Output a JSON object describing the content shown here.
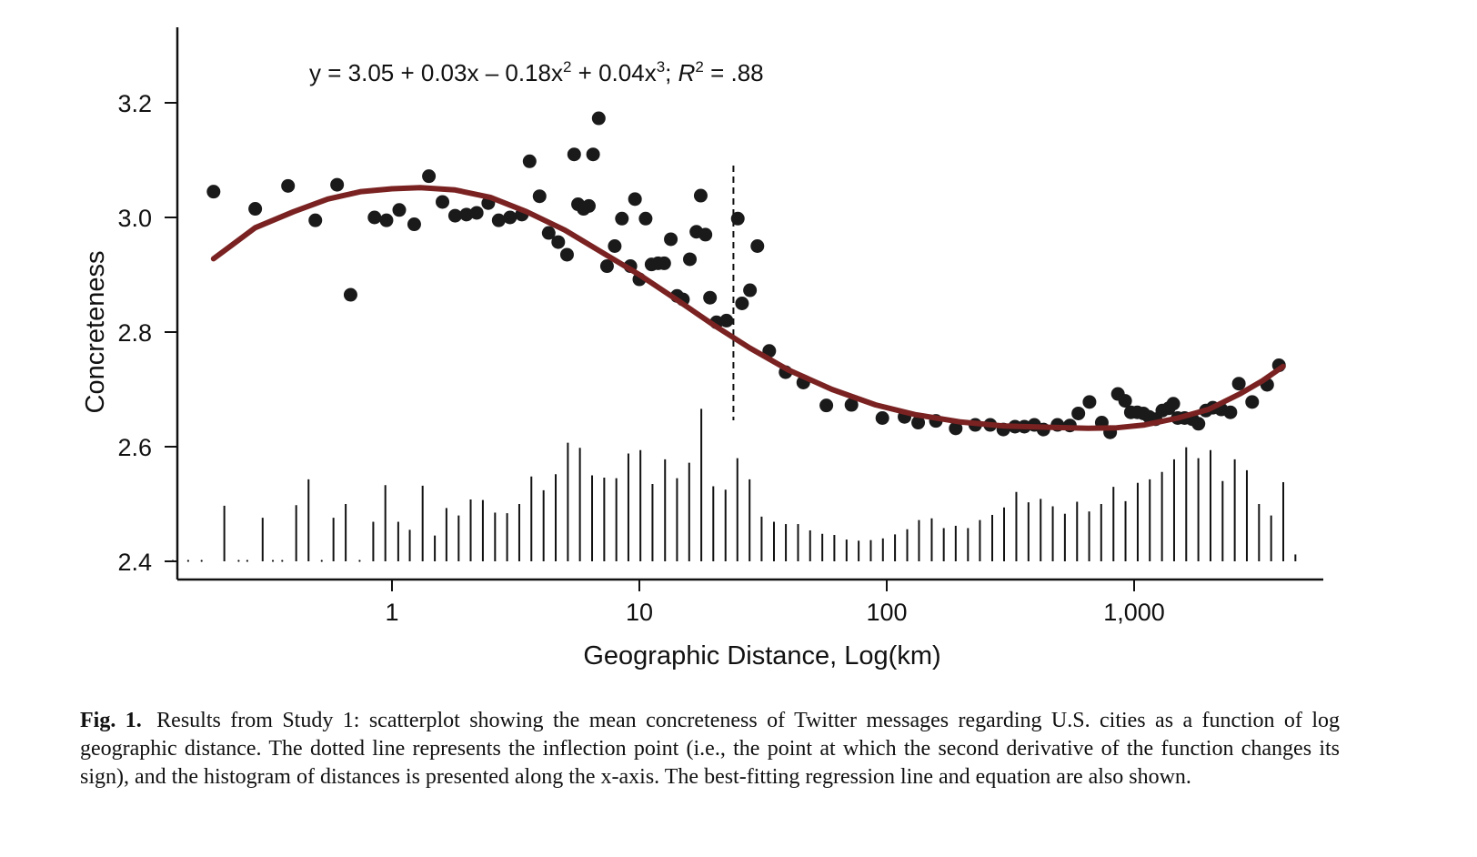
{
  "chart_data": {
    "type": "scatter",
    "equation": {
      "prefix": "y = 3.05 + 0.03x – 0.18x",
      "exp1": "2",
      "mid": " + 0.04x",
      "exp2": "3",
      "sep": "; ",
      "r": "R",
      "exp3": "2",
      "suffix": " = .88"
    },
    "xlabel": "Geographic Distance, Log(km)",
    "ylabel": "Concreteness",
    "x_scale": "log",
    "xlim": [
      0.12,
      6000
    ],
    "ylim": [
      2.4,
      3.33
    ],
    "x_ticks": [
      {
        "value": 1,
        "label": "1"
      },
      {
        "value": 10,
        "label": "10"
      },
      {
        "value": 100,
        "label": "100"
      },
      {
        "value": 1000,
        "label": "1,000"
      }
    ],
    "y_ticks": [
      {
        "value": 2.4,
        "label": "2.4"
      },
      {
        "value": 2.6,
        "label": "2.6"
      },
      {
        "value": 2.8,
        "label": "2.8"
      },
      {
        "value": 3.0,
        "label": "3.0"
      },
      {
        "value": 3.2,
        "label": "3.2"
      }
    ],
    "inflection_x": 24,
    "colors": {
      "points": "#1a1a1a",
      "fit": "#7a2222",
      "axis": "#111111"
    },
    "points": [
      {
        "x": 0.19,
        "y": 3.045
      },
      {
        "x": 0.28,
        "y": 3.015
      },
      {
        "x": 0.38,
        "y": 3.055
      },
      {
        "x": 0.49,
        "y": 2.995
      },
      {
        "x": 0.6,
        "y": 3.057
      },
      {
        "x": 0.68,
        "y": 2.865
      },
      {
        "x": 0.85,
        "y": 3.0
      },
      {
        "x": 0.95,
        "y": 2.995
      },
      {
        "x": 1.07,
        "y": 3.013
      },
      {
        "x": 1.23,
        "y": 2.988
      },
      {
        "x": 1.41,
        "y": 3.072
      },
      {
        "x": 1.6,
        "y": 3.027
      },
      {
        "x": 1.8,
        "y": 3.003
      },
      {
        "x": 2.0,
        "y": 3.005
      },
      {
        "x": 2.2,
        "y": 3.008
      },
      {
        "x": 2.45,
        "y": 3.025
      },
      {
        "x": 2.7,
        "y": 2.995
      },
      {
        "x": 3.0,
        "y": 3.0
      },
      {
        "x": 3.35,
        "y": 3.005
      },
      {
        "x": 3.6,
        "y": 3.098
      },
      {
        "x": 3.95,
        "y": 3.037
      },
      {
        "x": 4.3,
        "y": 2.973
      },
      {
        "x": 4.7,
        "y": 2.957
      },
      {
        "x": 5.1,
        "y": 2.935
      },
      {
        "x": 5.45,
        "y": 3.11
      },
      {
        "x": 5.65,
        "y": 3.023
      },
      {
        "x": 5.95,
        "y": 3.015
      },
      {
        "x": 6.25,
        "y": 3.02
      },
      {
        "x": 6.5,
        "y": 3.11
      },
      {
        "x": 6.85,
        "y": 3.173
      },
      {
        "x": 7.4,
        "y": 2.915
      },
      {
        "x": 7.95,
        "y": 2.95
      },
      {
        "x": 8.5,
        "y": 2.998
      },
      {
        "x": 9.2,
        "y": 2.915
      },
      {
        "x": 9.6,
        "y": 3.032
      },
      {
        "x": 10.0,
        "y": 2.892
      },
      {
        "x": 10.6,
        "y": 2.998
      },
      {
        "x": 11.2,
        "y": 2.918
      },
      {
        "x": 11.9,
        "y": 2.92
      },
      {
        "x": 12.6,
        "y": 2.92
      },
      {
        "x": 13.4,
        "y": 2.962
      },
      {
        "x": 14.2,
        "y": 2.863
      },
      {
        "x": 15.0,
        "y": 2.857
      },
      {
        "x": 16.0,
        "y": 2.927
      },
      {
        "x": 17.0,
        "y": 2.975
      },
      {
        "x": 17.7,
        "y": 3.038
      },
      {
        "x": 18.5,
        "y": 2.97
      },
      {
        "x": 19.3,
        "y": 2.86
      },
      {
        "x": 20.5,
        "y": 2.817
      },
      {
        "x": 22.5,
        "y": 2.82
      },
      {
        "x": 25.0,
        "y": 2.998
      },
      {
        "x": 26.0,
        "y": 2.85
      },
      {
        "x": 28.0,
        "y": 2.873
      },
      {
        "x": 30.0,
        "y": 2.95
      },
      {
        "x": 33.5,
        "y": 2.767
      },
      {
        "x": 39.0,
        "y": 2.73
      },
      {
        "x": 46.0,
        "y": 2.712
      },
      {
        "x": 57.0,
        "y": 2.672
      },
      {
        "x": 72.0,
        "y": 2.673
      },
      {
        "x": 96.0,
        "y": 2.65
      },
      {
        "x": 118.0,
        "y": 2.652
      },
      {
        "x": 134.0,
        "y": 2.642
      },
      {
        "x": 158.0,
        "y": 2.645
      },
      {
        "x": 190.0,
        "y": 2.632
      },
      {
        "x": 228.0,
        "y": 2.638
      },
      {
        "x": 262.0,
        "y": 2.638
      },
      {
        "x": 296.0,
        "y": 2.63
      },
      {
        "x": 330.0,
        "y": 2.635
      },
      {
        "x": 360.0,
        "y": 2.635
      },
      {
        "x": 395.0,
        "y": 2.638
      },
      {
        "x": 430.0,
        "y": 2.63
      },
      {
        "x": 490.0,
        "y": 2.638
      },
      {
        "x": 550.0,
        "y": 2.637
      },
      {
        "x": 595.0,
        "y": 2.658
      },
      {
        "x": 660.0,
        "y": 2.678
      },
      {
        "x": 740.0,
        "y": 2.642
      },
      {
        "x": 800.0,
        "y": 2.625
      },
      {
        "x": 860.0,
        "y": 2.692
      },
      {
        "x": 920.0,
        "y": 2.68
      },
      {
        "x": 970.0,
        "y": 2.66
      },
      {
        "x": 1030.0,
        "y": 2.66
      },
      {
        "x": 1090.0,
        "y": 2.658
      },
      {
        "x": 1150.0,
        "y": 2.652
      },
      {
        "x": 1220.0,
        "y": 2.648
      },
      {
        "x": 1300.0,
        "y": 2.663
      },
      {
        "x": 1380.0,
        "y": 2.667
      },
      {
        "x": 1440.0,
        "y": 2.675
      },
      {
        "x": 1500.0,
        "y": 2.65
      },
      {
        "x": 1600.0,
        "y": 2.65
      },
      {
        "x": 1720.0,
        "y": 2.648
      },
      {
        "x": 1820.0,
        "y": 2.64
      },
      {
        "x": 1950.0,
        "y": 2.663
      },
      {
        "x": 2080.0,
        "y": 2.668
      },
      {
        "x": 2250.0,
        "y": 2.665
      },
      {
        "x": 2450.0,
        "y": 2.66
      },
      {
        "x": 2650.0,
        "y": 2.71
      },
      {
        "x": 3000.0,
        "y": 2.678
      },
      {
        "x": 3450.0,
        "y": 2.708
      },
      {
        "x": 3850.0,
        "y": 2.742
      }
    ],
    "histogram": [
      {
        "x": 0.13,
        "y": 2.403
      },
      {
        "x": 0.15,
        "y": 2.403
      },
      {
        "x": 0.17,
        "y": 2.403
      },
      {
        "x": 0.21,
        "y": 2.497
      },
      {
        "x": 0.24,
        "y": 2.403
      },
      {
        "x": 0.26,
        "y": 2.403
      },
      {
        "x": 0.3,
        "y": 2.476
      },
      {
        "x": 0.33,
        "y": 2.403
      },
      {
        "x": 0.36,
        "y": 2.403
      },
      {
        "x": 0.41,
        "y": 2.498
      },
      {
        "x": 0.46,
        "y": 2.543
      },
      {
        "x": 0.52,
        "y": 2.403
      },
      {
        "x": 0.58,
        "y": 2.476
      },
      {
        "x": 0.65,
        "y": 2.5
      },
      {
        "x": 0.74,
        "y": 2.403
      },
      {
        "x": 0.84,
        "y": 2.469
      },
      {
        "x": 0.94,
        "y": 2.533
      },
      {
        "x": 1.06,
        "y": 2.469
      },
      {
        "x": 1.18,
        "y": 2.455
      },
      {
        "x": 1.33,
        "y": 2.532
      },
      {
        "x": 1.49,
        "y": 2.445
      },
      {
        "x": 1.66,
        "y": 2.493
      },
      {
        "x": 1.86,
        "y": 2.48
      },
      {
        "x": 2.08,
        "y": 2.508
      },
      {
        "x": 2.33,
        "y": 2.507
      },
      {
        "x": 2.61,
        "y": 2.485
      },
      {
        "x": 2.92,
        "y": 2.484
      },
      {
        "x": 3.27,
        "y": 2.5
      },
      {
        "x": 3.66,
        "y": 2.548
      },
      {
        "x": 4.1,
        "y": 2.524
      },
      {
        "x": 4.59,
        "y": 2.552
      },
      {
        "x": 5.14,
        "y": 2.607
      },
      {
        "x": 5.75,
        "y": 2.598
      },
      {
        "x": 6.44,
        "y": 2.55
      },
      {
        "x": 7.21,
        "y": 2.546
      },
      {
        "x": 8.07,
        "y": 2.545
      },
      {
        "x": 9.03,
        "y": 2.588
      },
      {
        "x": 10.1,
        "y": 2.594
      },
      {
        "x": 11.3,
        "y": 2.535
      },
      {
        "x": 12.7,
        "y": 2.578
      },
      {
        "x": 14.2,
        "y": 2.545
      },
      {
        "x": 15.9,
        "y": 2.572
      },
      {
        "x": 17.8,
        "y": 2.666
      },
      {
        "x": 19.9,
        "y": 2.531
      },
      {
        "x": 22.3,
        "y": 2.525
      },
      {
        "x": 24.9,
        "y": 2.58
      },
      {
        "x": 27.9,
        "y": 2.543
      },
      {
        "x": 31.2,
        "y": 2.478
      },
      {
        "x": 35.0,
        "y": 2.469
      },
      {
        "x": 39.1,
        "y": 2.465
      },
      {
        "x": 43.8,
        "y": 2.465
      },
      {
        "x": 49.0,
        "y": 2.454
      },
      {
        "x": 54.9,
        "y": 2.448
      },
      {
        "x": 61.4,
        "y": 2.446
      },
      {
        "x": 68.8,
        "y": 2.438
      },
      {
        "x": 77.0,
        "y": 2.436
      },
      {
        "x": 86.2,
        "y": 2.437
      },
      {
        "x": 96.5,
        "y": 2.44
      },
      {
        "x": 108.0,
        "y": 2.447
      },
      {
        "x": 121.0,
        "y": 2.456
      },
      {
        "x": 135.0,
        "y": 2.472
      },
      {
        "x": 152.0,
        "y": 2.475
      },
      {
        "x": 170.0,
        "y": 2.458
      },
      {
        "x": 190.0,
        "y": 2.462
      },
      {
        "x": 213.0,
        "y": 2.458
      },
      {
        "x": 238.0,
        "y": 2.472
      },
      {
        "x": 267.0,
        "y": 2.481
      },
      {
        "x": 298.0,
        "y": 2.494
      },
      {
        "x": 334.0,
        "y": 2.521
      },
      {
        "x": 374.0,
        "y": 2.503
      },
      {
        "x": 419.0,
        "y": 2.509
      },
      {
        "x": 469.0,
        "y": 2.496
      },
      {
        "x": 525.0,
        "y": 2.483
      },
      {
        "x": 588.0,
        "y": 2.504
      },
      {
        "x": 658.0,
        "y": 2.487
      },
      {
        "x": 736.0,
        "y": 2.5
      },
      {
        "x": 825.0,
        "y": 2.53
      },
      {
        "x": 923.0,
        "y": 2.505
      },
      {
        "x": 1034.0,
        "y": 2.537
      },
      {
        "x": 1157.0,
        "y": 2.543
      },
      {
        "x": 1296.0,
        "y": 2.556
      },
      {
        "x": 1451.0,
        "y": 2.578
      },
      {
        "x": 1624.0,
        "y": 2.599
      },
      {
        "x": 1818.0,
        "y": 2.58
      },
      {
        "x": 2036.0,
        "y": 2.594
      },
      {
        "x": 2279.0,
        "y": 2.54
      },
      {
        "x": 2551.0,
        "y": 2.578
      },
      {
        "x": 2856.0,
        "y": 2.559
      },
      {
        "x": 3198.0,
        "y": 2.5
      },
      {
        "x": 3580.0,
        "y": 2.48
      },
      {
        "x": 4008.0,
        "y": 2.538
      },
      {
        "x": 4487.0,
        "y": 2.412
      }
    ],
    "fit_curve": [
      {
        "x": 0.19,
        "y": 2.928
      },
      {
        "x": 0.28,
        "y": 2.982
      },
      {
        "x": 0.4,
        "y": 3.01
      },
      {
        "x": 0.55,
        "y": 3.032
      },
      {
        "x": 0.75,
        "y": 3.045
      },
      {
        "x": 1.0,
        "y": 3.05
      },
      {
        "x": 1.3,
        "y": 3.052
      },
      {
        "x": 1.8,
        "y": 3.048
      },
      {
        "x": 2.5,
        "y": 3.035
      },
      {
        "x": 3.5,
        "y": 3.01
      },
      {
        "x": 5.0,
        "y": 2.978
      },
      {
        "x": 7.0,
        "y": 2.94
      },
      {
        "x": 10.0,
        "y": 2.9
      },
      {
        "x": 14.0,
        "y": 2.858
      },
      {
        "x": 20.0,
        "y": 2.812
      },
      {
        "x": 28.0,
        "y": 2.772
      },
      {
        "x": 40.0,
        "y": 2.734
      },
      {
        "x": 60.0,
        "y": 2.7
      },
      {
        "x": 90.0,
        "y": 2.673
      },
      {
        "x": 130.0,
        "y": 2.656
      },
      {
        "x": 200.0,
        "y": 2.643
      },
      {
        "x": 300.0,
        "y": 2.636
      },
      {
        "x": 450.0,
        "y": 2.634
      },
      {
        "x": 650.0,
        "y": 2.632
      },
      {
        "x": 850.0,
        "y": 2.633
      },
      {
        "x": 1100.0,
        "y": 2.638
      },
      {
        "x": 1500.0,
        "y": 2.65
      },
      {
        "x": 2000.0,
        "y": 2.665
      },
      {
        "x": 2700.0,
        "y": 2.693
      },
      {
        "x": 3300.0,
        "y": 2.715
      },
      {
        "x": 4000.0,
        "y": 2.74
      }
    ]
  },
  "caption": {
    "label": "Fig. 1.",
    "text": "Results from Study 1: scatterplot showing the mean concreteness of Twitter messages regarding U.S. cities as a function of log geographic distance. The dotted line represents the inflection point (i.e., the point at which the second derivative of the function changes its sign), and the histogram of distances is presented along the x-axis. The best-fitting regression line and equation are also shown."
  }
}
